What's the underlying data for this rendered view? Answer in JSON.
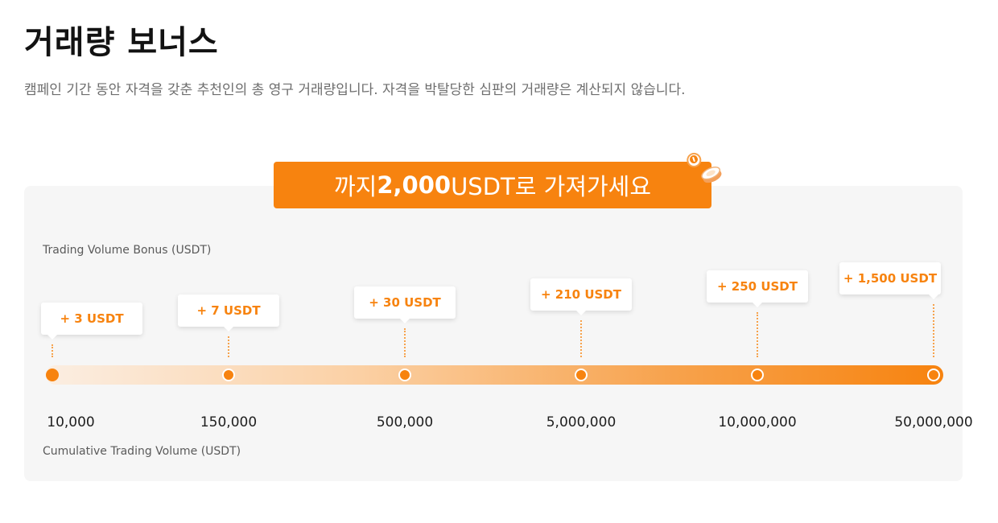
{
  "page": {
    "title": "거래량 보너스",
    "subtitle": "캠페인 기간 동안 자격을 갖춘 추천인의 총 영구 거래량입니다. 자격을 박탈당한 심판의 거래량은 계산되지 않습니다."
  },
  "banner": {
    "prefix": "까지",
    "amount": "2,000",
    "suffix": "USDT로 가져가세요",
    "icon": "coins-icon"
  },
  "chart": {
    "bonus_axis_label": "Trading Volume Bonus (USDT)",
    "volume_axis_label": "Cumulative Trading Volume (USDT)",
    "tiers": [
      {
        "bonus": "+ 3 USDT",
        "volume": "10,000"
      },
      {
        "bonus": "+ 7 USDT",
        "volume": "150,000"
      },
      {
        "bonus": "+ 30 USDT",
        "volume": "500,000"
      },
      {
        "bonus": "+ 210 USDT",
        "volume": "5,000,000"
      },
      {
        "bonus": "+ 250 USDT",
        "volume": "10,000,000"
      },
      {
        "bonus": "+ 1,500 USDT",
        "volume": "50,000,000"
      }
    ]
  },
  "colors": {
    "accent": "#f7830f",
    "panel_background": "#f6f6f6",
    "subtitle_text": "#6e6e6e"
  }
}
